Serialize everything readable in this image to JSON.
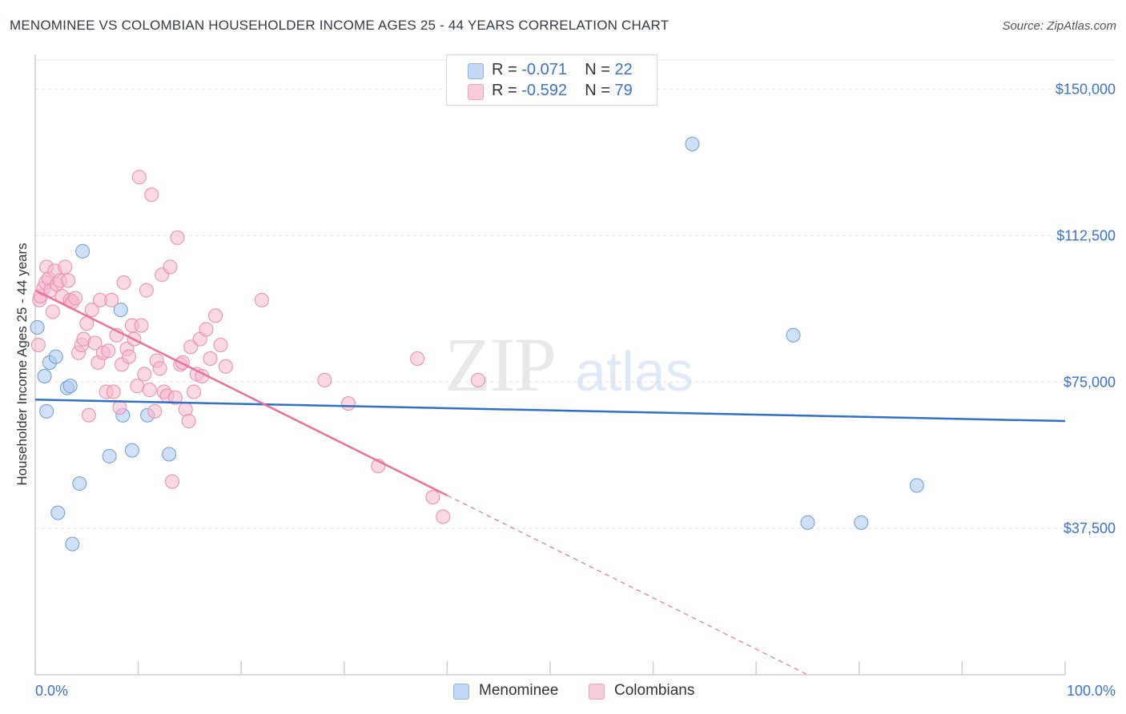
{
  "header": {
    "title": "MENOMINEE VS COLOMBIAN HOUSEHOLDER INCOME AGES 25 - 44 YEARS CORRELATION CHART",
    "source": "Source: ZipAtlas.com"
  },
  "watermark": {
    "zip": "ZIP",
    "atlas": "atlas"
  },
  "legend": {
    "rows": [
      {
        "r_label": "R = ",
        "r_value": "-0.071",
        "n_label": "N = ",
        "n_value": "22",
        "color": "#a9c8f0"
      },
      {
        "r_label": "R = ",
        "r_value": "-0.592",
        "n_label": "N = ",
        "n_value": "79",
        "color": "#f6b8cd"
      }
    ]
  },
  "bottom_legend": {
    "items": [
      {
        "label": "Menominee",
        "color": "#a9c8f0"
      },
      {
        "label": "Colombians",
        "color": "#f6b8cd"
      }
    ]
  },
  "chart_data": {
    "type": "scatter",
    "title": "MENOMINEE VS COLOMBIAN HOUSEHOLDER INCOME AGES 25 - 44 YEARS CORRELATION CHART",
    "ylabel": "Householder Income Ages 25 - 44 years",
    "xlabel": "",
    "xlim": [
      0,
      100
    ],
    "ylim": [
      0,
      157500
    ],
    "x_tick_labels": [
      "0.0%",
      "100.0%"
    ],
    "y_ticks": [
      37500,
      75000,
      112500,
      150000
    ],
    "y_tick_labels": [
      "$37,500",
      "$75,000",
      "$112,500",
      "$150,000"
    ],
    "grid": true,
    "legend_position": "top-center",
    "series": [
      {
        "name": "Menominee",
        "color": "#a9c8f0",
        "stroke": "#6a9ad6",
        "trend_color": "#2f6fcc",
        "trend": {
          "x0": 0,
          "y0": 70500,
          "x1": 100,
          "y1": 65000,
          "dash_from": null
        },
        "points": [
          [
            0.2,
            89000
          ],
          [
            0.9,
            76500
          ],
          [
            1.1,
            67500
          ],
          [
            1.4,
            80000
          ],
          [
            2.0,
            81500
          ],
          [
            3.1,
            73500
          ],
          [
            3.4,
            74000
          ],
          [
            2.2,
            41500
          ],
          [
            3.6,
            33500
          ],
          [
            4.3,
            49000
          ],
          [
            4.6,
            108500
          ],
          [
            7.2,
            56000
          ],
          [
            8.3,
            93500
          ],
          [
            8.5,
            66500
          ],
          [
            9.4,
            57500
          ],
          [
            10.9,
            66500
          ],
          [
            13.0,
            56500
          ],
          [
            63.8,
            136000
          ],
          [
            73.6,
            87000
          ],
          [
            75.0,
            39000
          ],
          [
            80.2,
            39000
          ],
          [
            85.6,
            48500
          ]
        ]
      },
      {
        "name": "Colombians",
        "color": "#f6b8cd",
        "stroke": "#e88aa9",
        "trend_color": "#e8709a",
        "trend": {
          "x0": 0,
          "y0": 98500,
          "x1": 75,
          "y1": 0,
          "dash_from": 40
        },
        "points": [
          [
            0.3,
            84500
          ],
          [
            0.4,
            96000
          ],
          [
            0.5,
            97000
          ],
          [
            0.8,
            99000
          ],
          [
            1.0,
            100500
          ],
          [
            1.1,
            104500
          ],
          [
            1.3,
            101500
          ],
          [
            1.5,
            98500
          ],
          [
            1.7,
            93000
          ],
          [
            1.9,
            103500
          ],
          [
            2.1,
            100000
          ],
          [
            2.4,
            101000
          ],
          [
            2.6,
            97000
          ],
          [
            2.9,
            104500
          ],
          [
            3.2,
            101000
          ],
          [
            3.4,
            96000
          ],
          [
            3.6,
            95500
          ],
          [
            3.9,
            96500
          ],
          [
            4.2,
            82500
          ],
          [
            4.5,
            84500
          ],
          [
            4.7,
            86000
          ],
          [
            5.0,
            90000
          ],
          [
            5.2,
            66500
          ],
          [
            5.5,
            93500
          ],
          [
            5.8,
            85000
          ],
          [
            6.1,
            80000
          ],
          [
            6.3,
            96000
          ],
          [
            6.6,
            82500
          ],
          [
            6.9,
            72500
          ],
          [
            7.1,
            83000
          ],
          [
            7.4,
            96000
          ],
          [
            7.6,
            72500
          ],
          [
            7.9,
            87000
          ],
          [
            8.2,
            68500
          ],
          [
            8.4,
            79500
          ],
          [
            8.6,
            100500
          ],
          [
            8.9,
            83500
          ],
          [
            9.1,
            81500
          ],
          [
            9.4,
            89500
          ],
          [
            9.6,
            86000
          ],
          [
            9.9,
            74000
          ],
          [
            10.1,
            127500
          ],
          [
            10.3,
            89500
          ],
          [
            10.6,
            77000
          ],
          [
            10.8,
            98500
          ],
          [
            11.1,
            73000
          ],
          [
            11.3,
            123000
          ],
          [
            11.6,
            67500
          ],
          [
            11.8,
            80500
          ],
          [
            12.1,
            78500
          ],
          [
            12.3,
            102500
          ],
          [
            12.5,
            72500
          ],
          [
            12.8,
            71500
          ],
          [
            13.1,
            104500
          ],
          [
            13.3,
            49500
          ],
          [
            13.6,
            71000
          ],
          [
            13.8,
            112000
          ],
          [
            14.1,
            79500
          ],
          [
            14.3,
            80000
          ],
          [
            14.6,
            68000
          ],
          [
            14.9,
            65000
          ],
          [
            15.1,
            84000
          ],
          [
            15.4,
            72500
          ],
          [
            15.7,
            77000
          ],
          [
            16.0,
            86000
          ],
          [
            16.2,
            76500
          ],
          [
            16.6,
            88500
          ],
          [
            17.0,
            81000
          ],
          [
            17.5,
            92000
          ],
          [
            18.0,
            84500
          ],
          [
            18.5,
            79000
          ],
          [
            22.0,
            96000
          ],
          [
            28.1,
            75500
          ],
          [
            30.4,
            69500
          ],
          [
            33.3,
            53500
          ],
          [
            37.1,
            81000
          ],
          [
            38.6,
            45500
          ],
          [
            43.0,
            75500
          ],
          [
            39.6,
            40500
          ]
        ]
      }
    ]
  }
}
